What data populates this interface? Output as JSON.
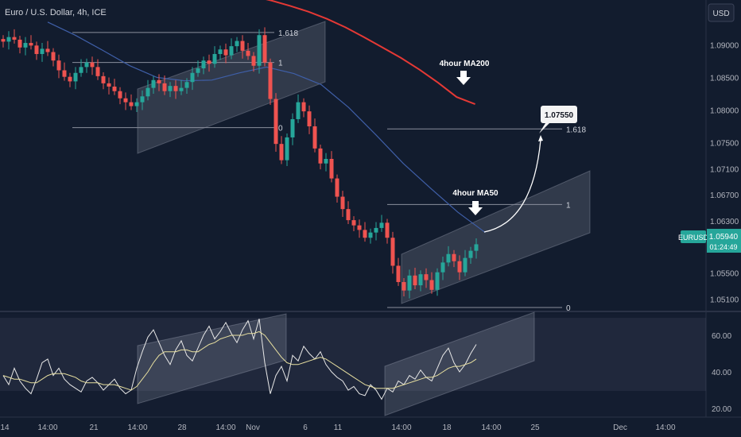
{
  "header": {
    "symbol_title": "Euro / U.S. Dollar, 4h, ICE",
    "currency_button": "USD"
  },
  "price_box": {
    "symbol": "EURUSD",
    "price": "1.05940",
    "countdown": "01:24:49"
  },
  "callout": {
    "value": "1.07550"
  },
  "annotations": {
    "ma200_label": "4hour MA200",
    "ma50_label": "4hour MA50"
  },
  "fib_labels": {
    "a_top": "1.618",
    "a_mid": "1",
    "a_bottom": "0",
    "b_top": "1.618",
    "b_mid": "1",
    "b_bottom": "0"
  },
  "colors": {
    "background": "#121c2e",
    "up": "#26a69a",
    "down": "#ef5350",
    "ma200": "#e53935",
    "ma50": "#3f5fa8",
    "rsi": "#e8e8e8",
    "rsi_ma": "#e8e0a0",
    "price_tag": "#26a69a"
  },
  "chart_data": [
    {
      "type": "candlestick",
      "title": "Euro / U.S. Dollar, 4h, ICE",
      "y_ticks": [
        1.09,
        1.085,
        1.08,
        1.075,
        1.071,
        1.067,
        1.063,
        1.059,
        1.055,
        1.051
      ],
      "y_tick_labels": [
        "1.09000",
        "1.08500",
        "1.08000",
        "1.07500",
        "1.07100",
        "1.06700",
        "1.06300",
        "1.05900",
        "1.05500",
        "1.05100"
      ],
      "x_ticks": [
        "14",
        "14:00",
        "21",
        "14:00",
        "28",
        "14:00",
        "Nov",
        "6",
        "11",
        "14:00",
        "18",
        "14:00",
        "25",
        "Dec",
        "14:00"
      ],
      "series_close": [
        1.0905,
        1.0912,
        1.0908,
        1.0896,
        1.0903,
        1.0899,
        1.0886,
        1.0894,
        1.0889,
        1.0876,
        1.0861,
        1.0851,
        1.0844,
        1.0857,
        1.0866,
        1.0873,
        1.0866,
        1.0852,
        1.0841,
        1.0836,
        1.0829,
        1.0818,
        1.0812,
        1.0806,
        1.0812,
        1.0821,
        1.0834,
        1.0846,
        1.0841,
        1.0829,
        1.0837,
        1.0829,
        1.0834,
        1.0843,
        1.0857,
        1.0864,
        1.0876,
        1.0871,
        1.0886,
        1.0893,
        1.0884,
        1.0898,
        1.0906,
        1.0891,
        1.0883,
        1.0868,
        1.0915,
        1.0873,
        1.0817,
        1.0748,
        1.0723,
        1.0758,
        1.0786,
        1.0812,
        1.0798,
        1.0775,
        1.0741,
        1.0718,
        1.0725,
        1.0695,
        1.0667,
        1.0648,
        1.0631,
        1.0623,
        1.0616,
        1.0604,
        1.0612,
        1.0619,
        1.0627,
        1.0604,
        1.0561,
        1.0536,
        1.0523,
        1.0546,
        1.0531,
        1.0548,
        1.0539,
        1.0524,
        1.0551,
        1.0566,
        1.0579,
        1.0568,
        1.0551,
        1.0573,
        1.0584,
        1.0594
      ],
      "series": [
        {
          "name": "4hour MA200",
          "values": [
            1.0975,
            1.0968,
            1.096,
            1.0951,
            1.094,
            1.0927,
            1.0912,
            1.0896,
            1.088,
            1.0862,
            1.0842,
            1.082,
            1.0809
          ]
        },
        {
          "name": "4hour MA50",
          "values": [
            1.0935,
            1.0915,
            1.0892,
            1.0868,
            1.085,
            1.0845,
            1.0846,
            1.0857,
            1.0866,
            1.0856,
            1.0839,
            1.0804,
            1.0762,
            1.0718,
            1.068,
            1.0643,
            1.0612
          ]
        }
      ],
      "annotations": [
        "1.618",
        "1",
        "0",
        "1.618",
        "1",
        "0",
        "1.07550",
        "4hour MA200",
        "4hour MA50"
      ]
    },
    {
      "type": "line",
      "title": "",
      "y_ticks": [
        60,
        40,
        20
      ],
      "y_tick_labels": [
        "60.00",
        "40.00",
        "20.00"
      ],
      "band": [
        30,
        70
      ],
      "series": [
        {
          "name": "",
          "values": [
            38,
            33,
            42,
            35,
            31,
            28,
            36,
            45,
            47,
            38,
            42,
            36,
            33,
            31,
            29,
            35,
            37,
            34,
            30,
            33,
            36,
            31,
            28,
            30,
            42,
            51,
            59,
            63,
            56,
            49,
            44,
            52,
            57,
            49,
            46,
            53,
            60,
            65,
            58,
            62,
            67,
            61,
            56,
            63,
            68,
            58,
            69,
            45,
            28,
            38,
            43,
            35,
            49,
            46,
            54,
            50,
            47,
            51,
            44,
            40,
            37,
            35,
            30,
            32,
            28,
            27,
            33,
            30,
            25,
            31,
            29,
            35,
            33,
            38,
            36,
            41,
            37,
            35,
            42,
            49,
            53,
            45,
            40,
            44,
            50,
            55
          ]
        },
        {
          "name": "",
          "values": [
            38,
            37,
            36,
            36,
            35,
            34,
            34,
            36,
            38,
            39,
            39,
            39,
            38,
            37,
            35,
            34,
            34,
            34,
            33,
            33,
            33,
            32,
            31,
            30,
            32,
            36,
            40,
            45,
            49,
            51,
            51,
            51,
            52,
            52,
            51,
            51,
            53,
            55,
            56,
            58,
            59,
            60,
            60,
            60,
            61,
            61,
            62,
            60,
            56,
            52,
            48,
            45,
            44,
            44,
            45,
            46,
            47,
            48,
            47,
            45,
            43,
            41,
            39,
            37,
            35,
            33,
            32,
            31,
            31,
            31,
            31,
            32,
            33,
            34,
            35,
            36,
            37,
            37,
            38,
            40,
            42,
            43,
            43,
            44,
            45,
            47
          ]
        }
      ]
    }
  ]
}
